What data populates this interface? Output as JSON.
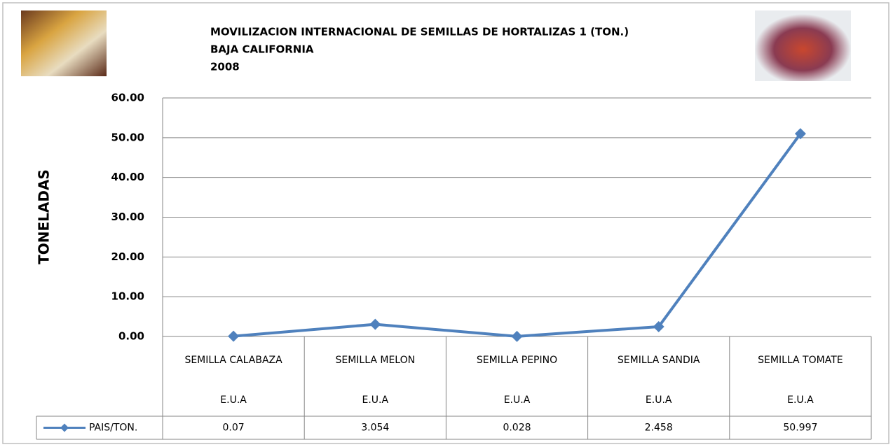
{
  "chart_data": {
    "type": "line",
    "title": [
      "MOVILIZACION INTERNACIONAL DE SEMILLAS DE HORTALIZAS 1 (TON.)",
      "BAJA CALIFORNIA",
      "2008"
    ],
    "y_label": "TONELADAS",
    "categories": [
      "SEMILLA CALABAZA",
      "SEMILLA MELON",
      "SEMILLA PEPINO",
      "SEMILLA SANDIA",
      "SEMILLA TOMATE"
    ],
    "category_countries": [
      "E.U.A",
      "E.U.A",
      "E.U.A",
      "E.U.A",
      "E.U.A"
    ],
    "series": [
      {
        "name": "PAIS/TON.",
        "color": "#4f81bd",
        "values": [
          0.07,
          3.054,
          0.028,
          2.458,
          50.997
        ]
      }
    ],
    "ylim": [
      0,
      60
    ],
    "yticks": [
      {
        "value": 0,
        "label": "0.00"
      },
      {
        "value": 10,
        "label": "10.00"
      },
      {
        "value": 20,
        "label": "20.00"
      },
      {
        "value": 30,
        "label": "30.00"
      },
      {
        "value": 40,
        "label": "40.00"
      },
      {
        "value": 50,
        "label": "50.00"
      },
      {
        "value": 60,
        "label": "60.00"
      }
    ],
    "grid": true,
    "data_table": true
  }
}
